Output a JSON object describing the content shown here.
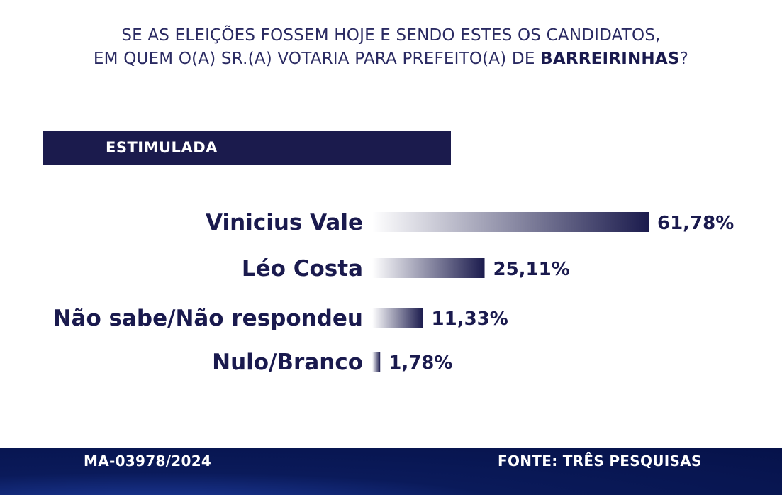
{
  "question": {
    "line1": "SE AS ELEIÇÕES FOSSEM HOJE E SENDO ESTES OS CANDIDATOS,",
    "line2_prefix": "EM QUEM O(A) SR.(A) VOTARIA PARA PREFEITO(A) DE ",
    "line2_city": "BARREIRINHAS",
    "line2_suffix": "?"
  },
  "section_label": "ESTIMULADA",
  "chart_data": {
    "type": "bar",
    "orientation": "horizontal",
    "categories": [
      "Vinicius Vale",
      "Léo Costa",
      "Não sabe/Não respondeu",
      "Nulo/Branco"
    ],
    "values": [
      61.78,
      25.11,
      11.33,
      1.78
    ],
    "value_labels": [
      "61,78%",
      "25,11%",
      "11,33%",
      "1,78%"
    ],
    "xlim": [
      0,
      61.78
    ],
    "bar_color": "#1b1b4d"
  },
  "footer": {
    "registration": "MA-03978/2024",
    "source": "FONTE: TRÊS PESQUISAS"
  }
}
